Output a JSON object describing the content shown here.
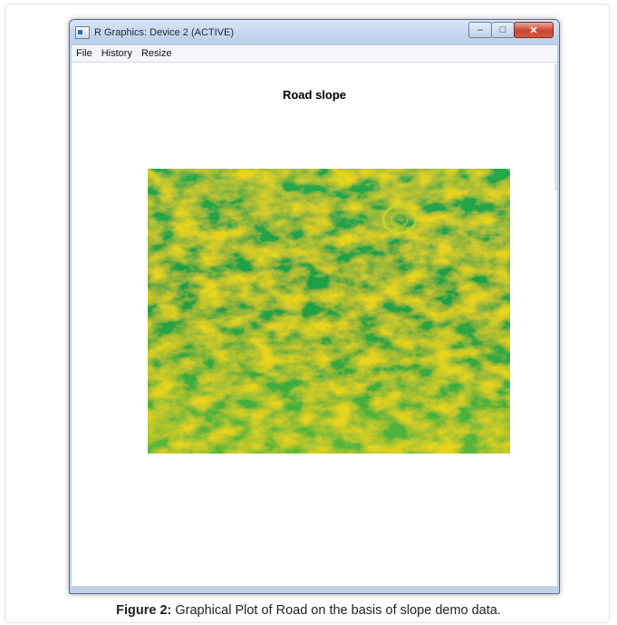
{
  "window": {
    "title": "R Graphics: Device 2 (ACTIVE)",
    "buttons": {
      "minimize": "–",
      "maximize": "□",
      "close": "✕"
    },
    "menu": [
      "File",
      "History",
      "Resize"
    ]
  },
  "plot": {
    "title": "Road slope",
    "colors": {
      "low": "#1fa84a",
      "mid": "#8cc63f",
      "high": "#f2d21b",
      "peak": "#f0a830"
    }
  },
  "caption": {
    "label": "Figure 2:",
    "text": " Graphical Plot of Road on the basis of slope demo data."
  }
}
